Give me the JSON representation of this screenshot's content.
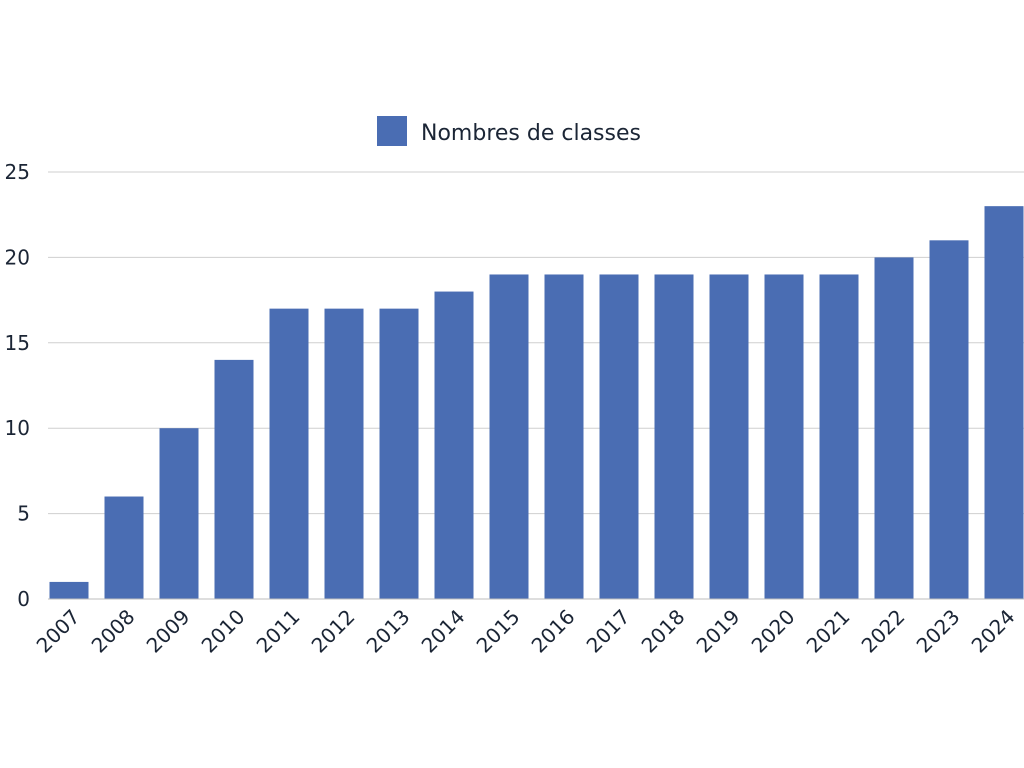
{
  "chart_data": {
    "type": "bar",
    "categories": [
      "2007",
      "2008",
      "2009",
      "2010",
      "2011",
      "2012",
      "2013",
      "2014",
      "2015",
      "2016",
      "2017",
      "2018",
      "2019",
      "2020",
      "2021",
      "2022",
      "2023",
      "2024"
    ],
    "series": [
      {
        "name": "Nombres de classes",
        "values": [
          1,
          6,
          10,
          14,
          17,
          17,
          17,
          18,
          19,
          19,
          19,
          19,
          19,
          19,
          19,
          20,
          21,
          23
        ],
        "color": "#4a6db3"
      }
    ],
    "y_ticks": [
      "0",
      "5",
      "10",
      "15",
      "20",
      "25"
    ],
    "ylim": [
      0,
      25
    ],
    "grid": true,
    "legend_position": "top-center"
  }
}
